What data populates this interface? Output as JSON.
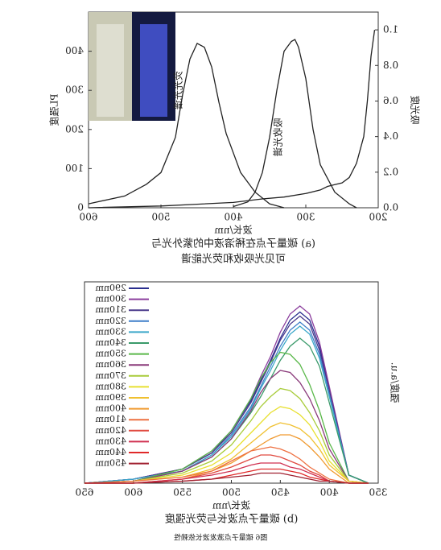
{
  "chart_data": [
    {
      "type": "line",
      "title": "(a) 碳量子点在稀溶液中的紫外光与",
      "subtitle": "可见光吸收和荧光能谱",
      "x_label": "波长/nm",
      "y_label": "吸光度",
      "y2_label": "PL强度",
      "annotations": [
        "荧光光谱",
        "吸收光谱"
      ],
      "xlim": [
        200,
        600
      ],
      "xticks": [
        200,
        300,
        400,
        500,
        600
      ],
      "ylim": [
        0,
        1.1
      ],
      "yticks": [
        {
          "value": 0,
          "label": "0.0"
        },
        0.2,
        0.4,
        0.6,
        0.8,
        {
          "value": 1,
          "label": "1.0"
        }
      ],
      "y2lim": [
        0,
        500
      ],
      "y2ticks": [
        0,
        100,
        200,
        300,
        400
      ],
      "series": [
        {
          "color": "#222222",
          "x": [
            205,
            210,
            215,
            220,
            230,
            240,
            250,
            260,
            270,
            280,
            300,
            330,
            360,
            400,
            450,
            500,
            600
          ],
          "values": [
            1.0,
            0.85,
            0.6,
            0.4,
            0.25,
            0.17,
            0.14,
            0.13,
            0.12,
            0.1,
            0.08,
            0.06,
            0.05,
            0.03,
            0.02,
            0.01,
            0
          ]
        },
        {
          "color": "#222222",
          "axis": "y2",
          "x": [
            230,
            240,
            260,
            280,
            290,
            300,
            310,
            315,
            320,
            330,
            340,
            350,
            360,
            370,
            380,
            400
          ],
          "values": [
            0,
            10,
            40,
            110,
            200,
            330,
            410,
            430,
            425,
            400,
            300,
            180,
            90,
            40,
            15,
            3
          ]
        },
        {
          "color": "#222222",
          "axis": "y2",
          "x": [
            330,
            350,
            370,
            390,
            410,
            420,
            430,
            440,
            450,
            460,
            470,
            480,
            500,
            520,
            550,
            600
          ],
          "values": [
            0,
            10,
            40,
            90,
            190,
            270,
            360,
            410,
            420,
            380,
            290,
            180,
            90,
            60,
            30,
            10
          ]
        }
      ]
    },
    {
      "type": "line",
      "title": "(b) 碳量子点波长与荧光强度",
      "x_label": "波长/nm",
      "y_label": "强度/a.u.",
      "xlim": [
        350,
        650
      ],
      "xticks": [
        350,
        400,
        450,
        500,
        550,
        600,
        650
      ],
      "ylim": [
        0,
        100
      ],
      "x": [
        360,
        380,
        400,
        410,
        420,
        430,
        440,
        450,
        460,
        470,
        480,
        500,
        520,
        550,
        600,
        650
      ],
      "series": [
        {
          "name": "290nm",
          "color": "#2b2f8f",
          "values": [
            0,
            4,
            47,
            68,
            81,
            85,
            81,
            72,
            61,
            51,
            41,
            26,
            15,
            7,
            2,
            0
          ]
        },
        {
          "name": "300nm",
          "color": "#8a3c9c",
          "values": [
            0,
            4,
            48,
            70,
            84,
            88,
            84,
            75,
            63,
            53,
            42,
            26,
            16,
            7,
            2,
            0
          ]
        },
        {
          "name": "310nm",
          "color": "#4b3a8c",
          "values": [
            0,
            4,
            46,
            66,
            79,
            83,
            79,
            71,
            60,
            50,
            40,
            25,
            15,
            7,
            2,
            0
          ]
        },
        {
          "name": "320nm",
          "color": "#3f7fc9",
          "values": [
            0,
            4,
            44,
            64,
            76,
            80,
            76,
            68,
            58,
            48,
            38,
            24,
            14,
            6,
            2,
            0
          ]
        },
        {
          "name": "330nm",
          "color": "#3aa7c9",
          "values": [
            0,
            4,
            43,
            62,
            74,
            78,
            74,
            66,
            56,
            47,
            37,
            23,
            14,
            6,
            2,
            0
          ]
        },
        {
          "name": "340nm",
          "color": "#3a9a6a",
          "values": [
            0,
            4,
            40,
            58,
            68,
            72,
            68,
            61,
            52,
            43,
            35,
            22,
            13,
            6,
            1,
            0
          ]
        },
        {
          "name": "350nm",
          "color": "#5ab84a",
          "values": [
            0,
            1,
            20,
            36,
            49,
            59,
            64,
            65,
            60,
            52,
            42,
            26,
            16,
            7,
            1,
            0
          ]
        },
        {
          "name": "360nm",
          "color": "#8a3a7a",
          "values": [
            0,
            1,
            17,
            31,
            42,
            50,
            55,
            56,
            52,
            45,
            36,
            22,
            13,
            6,
            1,
            0
          ]
        },
        {
          "name": "370nm",
          "color": "#a8cc3a",
          "values": [
            0,
            1,
            14,
            26,
            35,
            42,
            46,
            47,
            43,
            38,
            31,
            19,
            11,
            5,
            1,
            0
          ]
        },
        {
          "name": "380nm",
          "color": "#e8e030",
          "values": [
            0,
            1,
            11,
            21,
            29,
            34,
            37,
            38,
            35,
            30,
            25,
            15,
            9,
            4,
            1,
            0
          ]
        },
        {
          "name": "390nm",
          "color": "#f0c030",
          "values": [
            0,
            1,
            9,
            17,
            23,
            27,
            29,
            30,
            28,
            24,
            20,
            12,
            7,
            3,
            1,
            0
          ]
        },
        {
          "name": "400nm",
          "color": "#f09a30",
          "values": [
            0,
            0,
            7,
            13,
            18,
            22,
            24,
            24,
            22,
            19,
            16,
            10,
            6,
            2,
            0,
            0
          ]
        },
        {
          "name": "410nm",
          "color": "#ee7040",
          "values": [
            0,
            0,
            2,
            5,
            8,
            12,
            15,
            17,
            18,
            17,
            16,
            11,
            6,
            3,
            1,
            0
          ]
        },
        {
          "name": "420nm",
          "color": "#e04a40",
          "values": [
            0,
            0,
            1,
            4,
            6,
            9,
            11,
            13,
            14,
            14,
            12,
            8,
            5,
            2,
            0,
            0
          ]
        },
        {
          "name": "430nm",
          "color": "#d03050",
          "values": [
            0,
            0,
            1,
            3,
            5,
            7,
            8,
            10,
            10,
            10,
            9,
            6,
            4,
            2,
            0,
            0
          ]
        },
        {
          "name": "440nm",
          "color": "#e02a2a",
          "values": [
            0,
            0,
            1,
            2,
            3,
            5,
            6,
            7,
            7,
            7,
            6,
            4,
            2,
            1,
            0,
            0
          ]
        },
        {
          "name": "450nm",
          "color": "#a02030",
          "values": [
            0,
            0,
            1,
            1,
            2,
            3,
            4,
            5,
            5,
            5,
            4,
            3,
            2,
            1,
            0,
            0
          ]
        }
      ]
    }
  ],
  "caption": "图6 碳量子点激发波长依赖性"
}
